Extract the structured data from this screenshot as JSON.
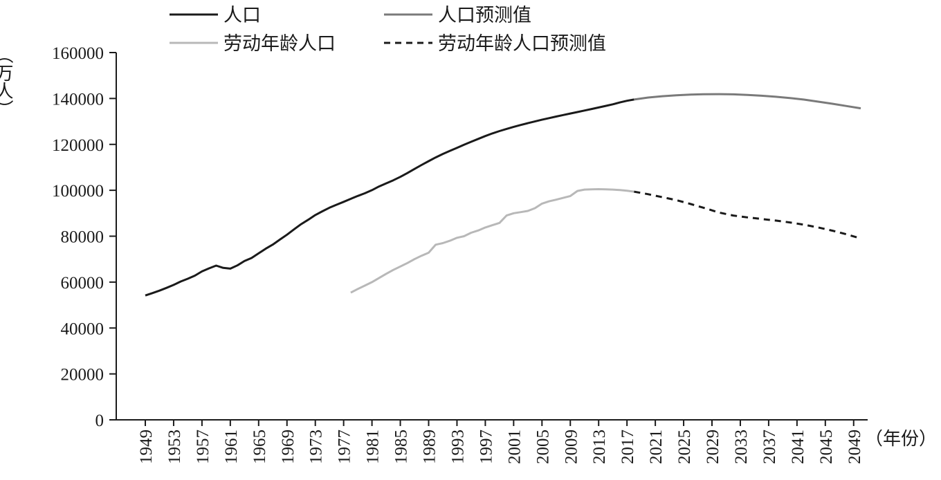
{
  "chart_data": {
    "type": "line",
    "ylabel": "（万人）",
    "xlabel": "（年份）",
    "ylim": [
      0,
      160000
    ],
    "yticks": [
      0,
      20000,
      40000,
      60000,
      80000,
      100000,
      120000,
      140000,
      160000
    ],
    "xlim": [
      1949,
      2050
    ],
    "xticks": [
      1949,
      1953,
      1957,
      1961,
      1965,
      1969,
      1973,
      1977,
      1981,
      1985,
      1989,
      1993,
      1997,
      2001,
      2005,
      2009,
      2013,
      2017,
      2021,
      2025,
      2029,
      2033,
      2037,
      2041,
      2045,
      2049
    ],
    "grid": false,
    "legend_position": "top",
    "series": [
      {
        "name": "人口",
        "color": "#1a1a1a",
        "dash": "solid",
        "x": [
          1949,
          1950,
          1951,
          1952,
          1953,
          1954,
          1955,
          1956,
          1957,
          1958,
          1959,
          1960,
          1961,
          1962,
          1963,
          1964,
          1965,
          1966,
          1967,
          1968,
          1969,
          1970,
          1971,
          1972,
          1973,
          1974,
          1975,
          1976,
          1977,
          1978,
          1979,
          1980,
          1981,
          1982,
          1983,
          1984,
          1985,
          1986,
          1987,
          1988,
          1989,
          1990,
          1991,
          1992,
          1993,
          1994,
          1995,
          1996,
          1997,
          1998,
          1999,
          2000,
          2001,
          2002,
          2003,
          2004,
          2005,
          2006,
          2007,
          2008,
          2009,
          2010,
          2011,
          2012,
          2013,
          2014,
          2015,
          2016,
          2017,
          2018
        ],
        "values": [
          54167,
          55196,
          56300,
          57482,
          58796,
          60266,
          61465,
          62828,
          64653,
          65994,
          67207,
          66207,
          65859,
          67295,
          69172,
          70499,
          72538,
          74542,
          76368,
          78534,
          80671,
          82992,
          85229,
          87177,
          89211,
          90859,
          92420,
          93717,
          94974,
          96259,
          97542,
          98705,
          100072,
          101654,
          103008,
          104357,
          105851,
          107507,
          109300,
          111026,
          112704,
          114333,
          115823,
          117171,
          118517,
          119850,
          121121,
          122389,
          123626,
          124761,
          125786,
          126743,
          127627,
          128453,
          129227,
          129988,
          130756,
          131448,
          132129,
          132802,
          133450,
          134091,
          134735,
          135404,
          136072,
          136782,
          137462,
          138271,
          139008,
          139538
        ]
      },
      {
        "name": "人口预测值",
        "color": "#7a7a7a",
        "dash": "solid",
        "x": [
          2018,
          2020,
          2022,
          2024,
          2026,
          2028,
          2030,
          2032,
          2034,
          2036,
          2038,
          2040,
          2042,
          2044,
          2046,
          2048,
          2050
        ],
        "values": [
          139538,
          140400,
          141000,
          141400,
          141700,
          141850,
          141900,
          141800,
          141550,
          141200,
          140750,
          140200,
          139500,
          138600,
          137700,
          136700,
          135700
        ]
      },
      {
        "name": "劳动年龄人口",
        "color": "#b8b8b8",
        "dash": "solid",
        "x": [
          1978,
          1979,
          1980,
          1981,
          1982,
          1983,
          1984,
          1985,
          1986,
          1987,
          1988,
          1989,
          1990,
          1991,
          1992,
          1993,
          1994,
          1995,
          1996,
          1997,
          1998,
          1999,
          2000,
          2001,
          2002,
          2003,
          2004,
          2005,
          2006,
          2007,
          2008,
          2009,
          2010,
          2011,
          2012,
          2013,
          2014,
          2015,
          2016,
          2017,
          2018
        ],
        "values": [
          55400,
          57000,
          58500,
          60000,
          61800,
          63600,
          65300,
          66800,
          68300,
          70000,
          71500,
          72800,
          76300,
          77000,
          78000,
          79300,
          80000,
          81500,
          82500,
          83800,
          84800,
          85800,
          89000,
          90000,
          90500,
          91000,
          92200,
          94200,
          95200,
          95900,
          96700,
          97500,
          99700,
          100300,
          100400,
          100500,
          100400,
          100300,
          100100,
          99800,
          99400
        ]
      },
      {
        "name": "劳动年龄人口预测值",
        "color": "#1a1a1a",
        "dash": "dashed",
        "x": [
          2018,
          2020,
          2022,
          2024,
          2026,
          2028,
          2030,
          2032,
          2034,
          2036,
          2038,
          2040,
          2042,
          2044,
          2046,
          2048,
          2050
        ],
        "values": [
          99400,
          98300,
          97000,
          95700,
          94000,
          92200,
          90300,
          89000,
          88200,
          87500,
          86800,
          86000,
          85000,
          83800,
          82400,
          80800,
          79000
        ]
      }
    ]
  }
}
